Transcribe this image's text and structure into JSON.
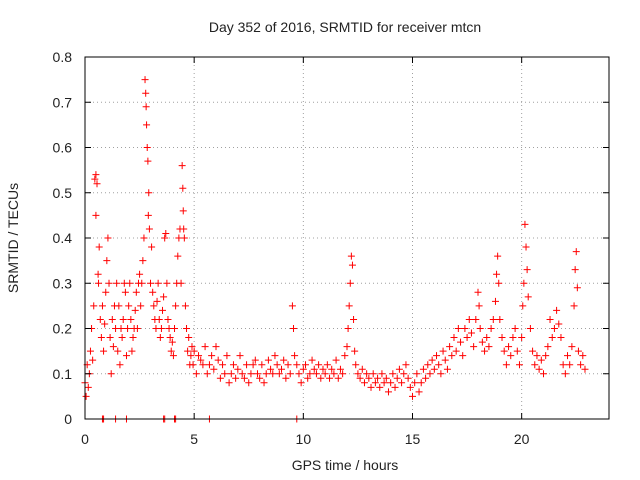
{
  "chart_data": {
    "type": "scatter",
    "title": "Day 352 of 2016, SRMTID for receiver mtcn",
    "xlabel": "GPS time / hours",
    "ylabel": "SRMTID / TECUs",
    "xlim": [
      0,
      24
    ],
    "ylim": [
      0,
      0.8
    ],
    "xticks": [
      0,
      5,
      10,
      15,
      20
    ],
    "xtick_labels": [
      "0",
      "5",
      "10",
      "15",
      "20"
    ],
    "yticks": [
      0,
      0.1,
      0.2,
      0.3,
      0.4,
      0.5,
      0.6,
      0.7,
      0.8
    ],
    "ytick_labels": [
      "0",
      "0.1",
      "0.2",
      "0.3",
      "0.4",
      "0.5",
      "0.6",
      "0.7",
      "0.8"
    ],
    "grid": true,
    "marker": "+",
    "color": "#ff0000",
    "series": [
      {
        "name": "SRMTID",
        "points": [
          [
            0.0,
            0.08
          ],
          [
            0.05,
            0.05
          ],
          [
            0.1,
            0.12
          ],
          [
            0.15,
            0.07
          ],
          [
            0.2,
            0.1
          ],
          [
            0.25,
            0.15
          ],
          [
            0.3,
            0.2
          ],
          [
            0.35,
            0.13
          ],
          [
            0.4,
            0.25
          ],
          [
            0.45,
            0.53
          ],
          [
            0.5,
            0.54
          ],
          [
            0.5,
            0.45
          ],
          [
            0.55,
            0.52
          ],
          [
            0.6,
            0.32
          ],
          [
            0.62,
            0.3
          ],
          [
            0.65,
            0.38
          ],
          [
            0.7,
            0.22
          ],
          [
            0.75,
            0.18
          ],
          [
            0.8,
            0.25
          ],
          [
            0.85,
            0.15
          ],
          [
            0.9,
            0.21
          ],
          [
            0.95,
            0.28
          ],
          [
            1.0,
            0.35
          ],
          [
            1.05,
            0.4
          ],
          [
            1.1,
            0.3
          ],
          [
            1.15,
            0.18
          ],
          [
            1.2,
            0.1
          ],
          [
            1.25,
            0.22
          ],
          [
            1.3,
            0.16
          ],
          [
            1.35,
            0.25
          ],
          [
            1.4,
            0.2
          ],
          [
            1.45,
            0.3
          ],
          [
            1.5,
            0.15
          ],
          [
            1.55,
            0.25
          ],
          [
            1.6,
            0.12
          ],
          [
            1.65,
            0.2
          ],
          [
            1.7,
            0.18
          ],
          [
            1.75,
            0.22
          ],
          [
            1.8,
            0.3
          ],
          [
            1.85,
            0.28
          ],
          [
            1.9,
            0.14
          ],
          [
            1.95,
            0.2
          ],
          [
            2.0,
            0.25
          ],
          [
            2.05,
            0.3
          ],
          [
            2.1,
            0.22
          ],
          [
            2.15,
            0.15
          ],
          [
            2.2,
            0.18
          ],
          [
            2.25,
            0.2
          ],
          [
            2.3,
            0.24
          ],
          [
            2.35,
            0.28
          ],
          [
            2.4,
            0.2
          ],
          [
            2.45,
            0.3
          ],
          [
            2.5,
            0.32
          ],
          [
            2.55,
            0.25
          ],
          [
            2.6,
            0.3
          ],
          [
            2.65,
            0.35
          ],
          [
            2.7,
            0.4
          ],
          [
            2.75,
            0.75
          ],
          [
            2.78,
            0.72
          ],
          [
            2.8,
            0.69
          ],
          [
            2.82,
            0.65
          ],
          [
            2.85,
            0.6
          ],
          [
            2.88,
            0.57
          ],
          [
            2.9,
            0.45
          ],
          [
            2.92,
            0.5
          ],
          [
            2.95,
            0.42
          ],
          [
            3.0,
            0.3
          ],
          [
            3.05,
            0.38
          ],
          [
            3.1,
            0.28
          ],
          [
            3.15,
            0.25
          ],
          [
            3.2,
            0.22
          ],
          [
            3.25,
            0.2
          ],
          [
            3.3,
            0.26
          ],
          [
            3.35,
            0.3
          ],
          [
            3.4,
            0.22
          ],
          [
            3.45,
            0.18
          ],
          [
            3.5,
            0.2
          ],
          [
            3.55,
            0.24
          ],
          [
            3.6,
            0.27
          ],
          [
            3.65,
            0.4
          ],
          [
            3.7,
            0.41
          ],
          [
            3.75,
            0.3
          ],
          [
            3.8,
            0.22
          ],
          [
            3.85,
            0.2
          ],
          [
            3.9,
            0.18
          ],
          [
            3.95,
            0.15
          ],
          [
            4.0,
            0.17
          ],
          [
            4.05,
            0.14
          ],
          [
            4.1,
            0.2
          ],
          [
            4.15,
            0.25
          ],
          [
            4.2,
            0.3
          ],
          [
            4.25,
            0.36
          ],
          [
            4.3,
            0.4
          ],
          [
            4.35,
            0.42
          ],
          [
            4.4,
            0.3
          ],
          [
            4.45,
            0.56
          ],
          [
            4.48,
            0.51
          ],
          [
            4.5,
            0.46
          ],
          [
            4.52,
            0.42
          ],
          [
            4.55,
            0.4
          ],
          [
            4.6,
            0.25
          ],
          [
            4.65,
            0.2
          ],
          [
            4.7,
            0.15
          ],
          [
            4.75,
            0.18
          ],
          [
            4.8,
            0.12
          ],
          [
            4.85,
            0.14
          ],
          [
            4.9,
            0.16
          ],
          [
            4.95,
            0.12
          ],
          [
            5.0,
            0.15
          ],
          [
            5.1,
            0.1
          ],
          [
            5.2,
            0.14
          ],
          [
            5.3,
            0.13
          ],
          [
            5.4,
            0.12
          ],
          [
            5.5,
            0.16
          ],
          [
            5.6,
            0.1
          ],
          [
            5.7,
            0.12
          ],
          [
            5.8,
            0.14
          ],
          [
            5.9,
            0.11
          ],
          [
            6.0,
            0.16
          ],
          [
            6.1,
            0.13
          ],
          [
            6.2,
            0.09
          ],
          [
            6.3,
            0.12
          ],
          [
            6.4,
            0.1
          ],
          [
            6.5,
            0.14
          ],
          [
            6.6,
            0.08
          ],
          [
            6.7,
            0.1
          ],
          [
            6.8,
            0.12
          ],
          [
            6.9,
            0.09
          ],
          [
            7.0,
            0.11
          ],
          [
            7.1,
            0.14
          ],
          [
            7.2,
            0.1
          ],
          [
            7.3,
            0.09
          ],
          [
            7.4,
            0.12
          ],
          [
            7.5,
            0.08
          ],
          [
            7.6,
            0.1
          ],
          [
            7.7,
            0.12
          ],
          [
            7.8,
            0.13
          ],
          [
            7.9,
            0.1
          ],
          [
            8.0,
            0.09
          ],
          [
            8.1,
            0.12
          ],
          [
            8.2,
            0.08
          ],
          [
            8.3,
            0.1
          ],
          [
            8.4,
            0.13
          ],
          [
            8.5,
            0.11
          ],
          [
            8.6,
            0.1
          ],
          [
            8.7,
            0.14
          ],
          [
            8.8,
            0.12
          ],
          [
            8.9,
            0.1
          ],
          [
            9.0,
            0.11
          ],
          [
            9.1,
            0.13
          ],
          [
            9.2,
            0.09
          ],
          [
            9.3,
            0.12
          ],
          [
            9.4,
            0.1
          ],
          [
            9.5,
            0.25
          ],
          [
            9.55,
            0.2
          ],
          [
            9.6,
            0.14
          ],
          [
            9.7,
            0.12
          ],
          [
            9.8,
            0.1
          ],
          [
            9.9,
            0.08
          ],
          [
            10.0,
            0.11
          ],
          [
            10.1,
            0.12
          ],
          [
            10.2,
            0.09
          ],
          [
            10.3,
            0.1
          ],
          [
            10.4,
            0.13
          ],
          [
            10.5,
            0.11
          ],
          [
            10.6,
            0.1
          ],
          [
            10.7,
            0.12
          ],
          [
            10.8,
            0.09
          ],
          [
            10.9,
            0.11
          ],
          [
            11.0,
            0.1
          ],
          [
            11.1,
            0.12
          ],
          [
            11.2,
            0.09
          ],
          [
            11.3,
            0.11
          ],
          [
            11.4,
            0.1
          ],
          [
            11.5,
            0.13
          ],
          [
            11.6,
            0.09
          ],
          [
            11.7,
            0.11
          ],
          [
            11.8,
            0.1
          ],
          [
            11.9,
            0.14
          ],
          [
            12.0,
            0.16
          ],
          [
            12.05,
            0.2
          ],
          [
            12.1,
            0.25
          ],
          [
            12.15,
            0.3
          ],
          [
            12.2,
            0.36
          ],
          [
            12.25,
            0.34
          ],
          [
            12.3,
            0.22
          ],
          [
            12.35,
            0.15
          ],
          [
            12.4,
            0.12
          ],
          [
            12.5,
            0.1
          ],
          [
            12.6,
            0.09
          ],
          [
            12.7,
            0.11
          ],
          [
            12.8,
            0.08
          ],
          [
            12.9,
            0.1
          ],
          [
            13.0,
            0.09
          ],
          [
            13.1,
            0.07
          ],
          [
            13.2,
            0.1
          ],
          [
            13.3,
            0.08
          ],
          [
            13.4,
            0.09
          ],
          [
            13.5,
            0.07
          ],
          [
            13.6,
            0.1
          ],
          [
            13.7,
            0.08
          ],
          [
            13.8,
            0.09
          ],
          [
            13.9,
            0.06
          ],
          [
            14.0,
            0.08
          ],
          [
            14.1,
            0.1
          ],
          [
            14.2,
            0.07
          ],
          [
            14.3,
            0.09
          ],
          [
            14.4,
            0.11
          ],
          [
            14.5,
            0.08
          ],
          [
            14.6,
            0.1
          ],
          [
            14.7,
            0.12
          ],
          [
            14.8,
            0.09
          ],
          [
            14.9,
            0.07
          ],
          [
            15.0,
            0.05
          ],
          [
            15.1,
            0.08
          ],
          [
            15.2,
            0.1
          ],
          [
            15.3,
            0.06
          ],
          [
            15.4,
            0.08
          ],
          [
            15.5,
            0.11
          ],
          [
            15.6,
            0.09
          ],
          [
            15.7,
            0.12
          ],
          [
            15.8,
            0.1
          ],
          [
            15.9,
            0.13
          ],
          [
            16.0,
            0.11
          ],
          [
            16.1,
            0.14
          ],
          [
            16.2,
            0.12
          ],
          [
            16.3,
            0.1
          ],
          [
            16.4,
            0.15
          ],
          [
            16.5,
            0.13
          ],
          [
            16.6,
            0.11
          ],
          [
            16.7,
            0.16
          ],
          [
            16.8,
            0.14
          ],
          [
            16.9,
            0.18
          ],
          [
            17.0,
            0.15
          ],
          [
            17.1,
            0.2
          ],
          [
            17.2,
            0.17
          ],
          [
            17.3,
            0.14
          ],
          [
            17.4,
            0.2
          ],
          [
            17.5,
            0.18
          ],
          [
            17.6,
            0.22
          ],
          [
            17.7,
            0.19
          ],
          [
            17.8,
            0.16
          ],
          [
            17.9,
            0.22
          ],
          [
            18.0,
            0.28
          ],
          [
            18.05,
            0.25
          ],
          [
            18.1,
            0.2
          ],
          [
            18.2,
            0.17
          ],
          [
            18.3,
            0.15
          ],
          [
            18.4,
            0.18
          ],
          [
            18.5,
            0.16
          ],
          [
            18.6,
            0.2
          ],
          [
            18.7,
            0.22
          ],
          [
            18.8,
            0.26
          ],
          [
            18.85,
            0.32
          ],
          [
            18.9,
            0.36
          ],
          [
            18.95,
            0.3
          ],
          [
            19.0,
            0.22
          ],
          [
            19.1,
            0.18
          ],
          [
            19.2,
            0.15
          ],
          [
            19.3,
            0.12
          ],
          [
            19.4,
            0.16
          ],
          [
            19.5,
            0.14
          ],
          [
            19.6,
            0.18
          ],
          [
            19.7,
            0.2
          ],
          [
            19.8,
            0.15
          ],
          [
            19.9,
            0.12
          ],
          [
            20.0,
            0.18
          ],
          [
            20.05,
            0.25
          ],
          [
            20.1,
            0.3
          ],
          [
            20.15,
            0.43
          ],
          [
            20.2,
            0.38
          ],
          [
            20.25,
            0.33
          ],
          [
            20.3,
            0.27
          ],
          [
            20.4,
            0.2
          ],
          [
            20.5,
            0.15
          ],
          [
            20.6,
            0.12
          ],
          [
            20.7,
            0.14
          ],
          [
            20.8,
            0.11
          ],
          [
            20.9,
            0.13
          ],
          [
            21.0,
            0.1
          ],
          [
            21.1,
            0.14
          ],
          [
            21.2,
            0.16
          ],
          [
            21.3,
            0.22
          ],
          [
            21.4,
            0.18
          ],
          [
            21.5,
            0.2
          ],
          [
            21.6,
            0.24
          ],
          [
            21.7,
            0.21
          ],
          [
            21.8,
            0.18
          ],
          [
            21.9,
            0.12
          ],
          [
            22.0,
            0.1
          ],
          [
            22.1,
            0.14
          ],
          [
            22.2,
            0.12
          ],
          [
            22.3,
            0.16
          ],
          [
            22.4,
            0.25
          ],
          [
            22.45,
            0.33
          ],
          [
            22.5,
            0.37
          ],
          [
            22.55,
            0.29
          ],
          [
            22.6,
            0.15
          ],
          [
            22.7,
            0.12
          ],
          [
            22.8,
            0.14
          ],
          [
            22.9,
            0.11
          ],
          [
            0.8,
            0.0
          ],
          [
            0.85,
            0.0
          ],
          [
            1.4,
            0.0
          ],
          [
            1.9,
            0.0
          ],
          [
            3.6,
            0.0
          ],
          [
            3.65,
            0.0
          ],
          [
            4.1,
            0.0
          ],
          [
            4.15,
            0.0
          ],
          [
            5.7,
            0.0
          ],
          [
            9.7,
            0.0
          ]
        ]
      }
    ]
  }
}
